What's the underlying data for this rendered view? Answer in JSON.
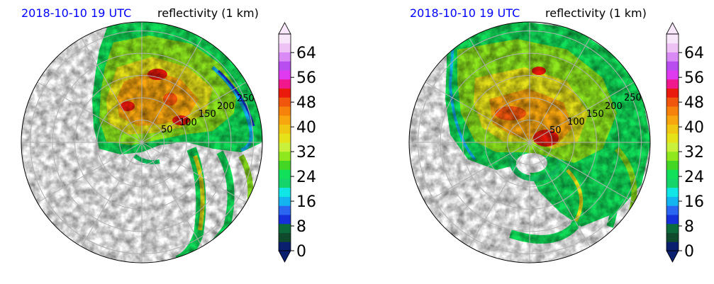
{
  "chart_data": [
    {
      "type": "heatmap",
      "title_date": "2018-10-10 19 UTC",
      "title_field": "reflectivity (1 km)",
      "range_ring_labels": [
        "50",
        "100",
        "150",
        "200",
        "250"
      ],
      "range_rings_km": [
        50,
        100,
        150,
        200,
        250
      ],
      "projection": "polar",
      "grid": true,
      "colorbar": {
        "ticks": [
          0,
          8,
          16,
          24,
          32,
          40,
          48,
          56,
          64
        ],
        "tick_labels": [
          "0",
          "8",
          "16",
          "24",
          "32",
          "40",
          "48",
          "56",
          "64"
        ],
        "min": 0,
        "max": 70,
        "extend": "both"
      }
    },
    {
      "type": "heatmap",
      "title_date": "2018-10-10 19 UTC",
      "title_field": "reflectivity (1 km)",
      "range_ring_labels": [
        "50",
        "100",
        "150",
        "200",
        "250"
      ],
      "range_rings_km": [
        50,
        100,
        150,
        200,
        250
      ],
      "projection": "polar",
      "grid": true,
      "colorbar": {
        "ticks": [
          0,
          8,
          16,
          24,
          32,
          40,
          48,
          56,
          64
        ],
        "tick_labels": [
          "0",
          "8",
          "16",
          "24",
          "32",
          "40",
          "48",
          "56",
          "64"
        ],
        "min": 0,
        "max": 70,
        "extend": "both"
      }
    }
  ],
  "colors": {
    "title_date": "#0000ff",
    "title_field": "#000000",
    "grid": "#b0b0b0",
    "colormap": [
      "#0a1f6e",
      "#0f4a2d",
      "#0b6b3a",
      "#1530d8",
      "#2a66f0",
      "#13b4f0",
      "#11e6e6",
      "#14d46a",
      "#11e05a",
      "#43d624",
      "#8fe81e",
      "#c9f03a",
      "#e6e21a",
      "#f0c814",
      "#f7a60f",
      "#f6820c",
      "#f0560c",
      "#ea1a0c",
      "#f0188c",
      "#e03af0",
      "#b84ef0",
      "#d98af5",
      "#eec2f5",
      "#f8e6fa"
    ]
  }
}
